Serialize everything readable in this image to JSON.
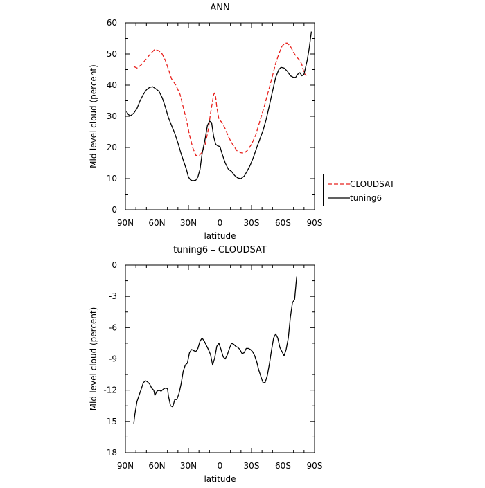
{
  "chart_data": [
    {
      "type": "line",
      "title": "ANN",
      "xlabel": "latitude",
      "ylabel": "Mid-level cloud (percent)",
      "xlim": [
        90,
        -90
      ],
      "ylim": [
        0,
        60
      ],
      "x_ticks": [
        90,
        60,
        30,
        0,
        -30,
        -60,
        -90
      ],
      "x_tick_labels": [
        "90N",
        "60N",
        "30N",
        "0",
        "30S",
        "60S",
        "90S"
      ],
      "y_ticks": [
        0,
        10,
        20,
        30,
        40,
        50,
        60
      ],
      "y_tick_labels": [
        "0",
        "10",
        "20",
        "30",
        "40",
        "50",
        "60"
      ],
      "legend_position": "right-outside",
      "series": [
        {
          "name": "CLOUDSAT",
          "color": "#e8201c",
          "style": "dashed",
          "points": [
            [
              82,
              46
            ],
            [
              79,
              45.5
            ],
            [
              75,
              46.5
            ],
            [
              70,
              48.5
            ],
            [
              65,
              50.5
            ],
            [
              62,
              51.5
            ],
            [
              58,
              51
            ],
            [
              55,
              50
            ],
            [
              52,
              48
            ],
            [
              49,
              45
            ],
            [
              46,
              42
            ],
            [
              42,
              40
            ],
            [
              38,
              37
            ],
            [
              35,
              33
            ],
            [
              32,
              29
            ],
            [
              29,
              24
            ],
            [
              26,
              20
            ],
            [
              23,
              17.5
            ],
            [
              20,
              17.3
            ],
            [
              17,
              18.5
            ],
            [
              14,
              21
            ],
            [
              11,
              26
            ],
            [
              9,
              31
            ],
            [
              7,
              35
            ],
            [
              6,
              37
            ],
            [
              5,
              37.5
            ],
            [
              4,
              36
            ],
            [
              3,
              33
            ],
            [
              1,
              29
            ],
            [
              -2,
              28
            ],
            [
              -5,
              26
            ],
            [
              -8,
              23.5
            ],
            [
              -12,
              21
            ],
            [
              -16,
              19
            ],
            [
              -20,
              18.3
            ],
            [
              -23,
              18.2
            ],
            [
              -26,
              19
            ],
            [
              -30,
              21
            ],
            [
              -34,
              24
            ],
            [
              -38,
              28.5
            ],
            [
              -42,
              33
            ],
            [
              -46,
              38
            ],
            [
              -50,
              43
            ],
            [
              -53,
              47
            ],
            [
              -56,
              50
            ],
            [
              -59,
              52.5
            ],
            [
              -62,
              53.5
            ],
            [
              -64,
              53.5
            ],
            [
              -67,
              52.5
            ],
            [
              -70,
              50.5
            ],
            [
              -73,
              49
            ],
            [
              -76,
              48
            ],
            [
              -78,
              46.5
            ],
            [
              -80,
              44
            ],
            [
              -82,
              43
            ]
          ]
        },
        {
          "name": "tuning6",
          "color": "#000000",
          "style": "solid",
          "points": [
            [
              89,
              31.5
            ],
            [
              87,
              30.5
            ],
            [
              85,
              30.2
            ],
            [
              82,
              31
            ],
            [
              79,
              32.5
            ],
            [
              76,
              35
            ],
            [
              73,
              37
            ],
            [
              70,
              38.5
            ],
            [
              67,
              39.3
            ],
            [
              64,
              39.5
            ],
            [
              61,
              38.8
            ],
            [
              58,
              38
            ],
            [
              55,
              36
            ],
            [
              52,
              33
            ],
            [
              49,
              29.5
            ],
            [
              46,
              27
            ],
            [
              43,
              24.5
            ],
            [
              40,
              21.5
            ],
            [
              37,
              18
            ],
            [
              34,
              15
            ],
            [
              32,
              13
            ],
            [
              30,
              10.5
            ],
            [
              28,
              9.6
            ],
            [
              26,
              9.3
            ],
            [
              23,
              9.5
            ],
            [
              21,
              10.5
            ],
            [
              19,
              13
            ],
            [
              17,
              18
            ],
            [
              14,
              23
            ],
            [
              12,
              27
            ],
            [
              10,
              28.5
            ],
            [
              8,
              28
            ],
            [
              6,
              23.5
            ],
            [
              4,
              21
            ],
            [
              2,
              20.5
            ],
            [
              0,
              20.3
            ],
            [
              -2,
              18
            ],
            [
              -5,
              15
            ],
            [
              -8,
              13
            ],
            [
              -11,
              12.3
            ],
            [
              -14,
              11
            ],
            [
              -17,
              10.2
            ],
            [
              -20,
              10
            ],
            [
              -23,
              10.8
            ],
            [
              -26,
              12.5
            ],
            [
              -29,
              14.5
            ],
            [
              -32,
              17
            ],
            [
              -35,
              20
            ],
            [
              -38,
              22.7
            ],
            [
              -41,
              25.5
            ],
            [
              -44,
              29
            ],
            [
              -47,
              33.5
            ],
            [
              -50,
              38
            ],
            [
              -53,
              42.5
            ],
            [
              -56,
              45
            ],
            [
              -58,
              45.7
            ],
            [
              -61,
              45.5
            ],
            [
              -64,
              44.5
            ],
            [
              -67,
              43
            ],
            [
              -70,
              42.5
            ],
            [
              -72,
              42.5
            ],
            [
              -74,
              43.5
            ],
            [
              -76,
              44
            ],
            [
              -78,
              43
            ],
            [
              -80,
              43.5
            ],
            [
              -83,
              48
            ],
            [
              -85,
              52
            ],
            [
              -87,
              57.2
            ]
          ]
        }
      ]
    },
    {
      "type": "line",
      "title": "tuning6 – CLOUDSAT",
      "xlabel": "latitude",
      "ylabel": "Mid-level cloud (percent)",
      "xlim": [
        90,
        -90
      ],
      "ylim": [
        -18,
        0
      ],
      "x_ticks": [
        90,
        60,
        30,
        0,
        -30,
        -60,
        -90
      ],
      "x_tick_labels": [
        "90N",
        "60N",
        "30N",
        "0",
        "30S",
        "60S",
        "90S"
      ],
      "y_ticks": [
        0,
        -3,
        -6,
        -9,
        -12,
        -15,
        -18
      ],
      "y_tick_labels": [
        "0",
        "-3",
        "-6",
        "-9",
        "-12",
        "-15",
        "-18"
      ],
      "series": [
        {
          "color": "#000000",
          "style": "solid",
          "points": [
            [
              82,
              -15.2
            ],
            [
              81,
              -14.3
            ],
            [
              79,
              -13.1
            ],
            [
              77,
              -12.5
            ],
            [
              75,
              -11.9
            ],
            [
              73,
              -11.3
            ],
            [
              71,
              -11.1
            ],
            [
              69,
              -11.2
            ],
            [
              67,
              -11.4
            ],
            [
              65,
              -11.8
            ],
            [
              63,
              -12.0
            ],
            [
              62,
              -12.5
            ],
            [
              60,
              -12.1
            ],
            [
              58,
              -12.0
            ],
            [
              56,
              -12.1
            ],
            [
              54,
              -11.9
            ],
            [
              52,
              -11.8
            ],
            [
              50,
              -11.85
            ],
            [
              49,
              -12.6
            ],
            [
              47,
              -13.5
            ],
            [
              45,
              -13.6
            ],
            [
              43,
              -12.9
            ],
            [
              41,
              -12.9
            ],
            [
              39,
              -12.3
            ],
            [
              37,
              -11.4
            ],
            [
              35,
              -10.2
            ],
            [
              33,
              -9.6
            ],
            [
              31,
              -9.4
            ],
            [
              29,
              -8.4
            ],
            [
              27,
              -8.1
            ],
            [
              25,
              -8.2
            ],
            [
              23,
              -8.3
            ],
            [
              21,
              -8.0
            ],
            [
              19,
              -7.3
            ],
            [
              17,
              -7.0
            ],
            [
              15,
              -7.3
            ],
            [
              13,
              -7.7
            ],
            [
              11,
              -8.1
            ],
            [
              9,
              -8.6
            ],
            [
              7,
              -9.6
            ],
            [
              5,
              -8.9
            ],
            [
              3,
              -7.8
            ],
            [
              1,
              -7.5
            ],
            [
              -1,
              -8.1
            ],
            [
              -3,
              -8.8
            ],
            [
              -5,
              -9.0
            ],
            [
              -7,
              -8.6
            ],
            [
              -9,
              -8.0
            ],
            [
              -11,
              -7.5
            ],
            [
              -13,
              -7.6
            ],
            [
              -15,
              -7.8
            ],
            [
              -17,
              -7.9
            ],
            [
              -19,
              -8.1
            ],
            [
              -21,
              -8.5
            ],
            [
              -23,
              -8.4
            ],
            [
              -25,
              -8.0
            ],
            [
              -27,
              -8.0
            ],
            [
              -29,
              -8.1
            ],
            [
              -31,
              -8.3
            ],
            [
              -33,
              -8.7
            ],
            [
              -35,
              -9.3
            ],
            [
              -37,
              -10.1
            ],
            [
              -39,
              -10.7
            ],
            [
              -41,
              -11.3
            ],
            [
              -43,
              -11.25
            ],
            [
              -45,
              -10.6
            ],
            [
              -47,
              -9.5
            ],
            [
              -49,
              -8.2
            ],
            [
              -51,
              -7.0
            ],
            [
              -53,
              -6.6
            ],
            [
              -55,
              -7.0
            ],
            [
              -57,
              -7.9
            ],
            [
              -59,
              -8.3
            ],
            [
              -61,
              -8.7
            ],
            [
              -63,
              -8.1
            ],
            [
              -65,
              -7.0
            ],
            [
              -67,
              -5.0
            ],
            [
              -69,
              -3.6
            ],
            [
              -71,
              -3.3
            ],
            [
              -73,
              -1.1
            ]
          ]
        }
      ]
    }
  ]
}
